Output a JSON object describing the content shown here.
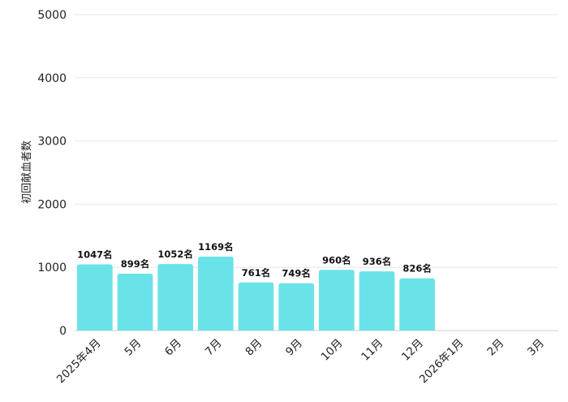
{
  "chart_data": {
    "type": "bar",
    "ylabel": "初回献血者数",
    "ylim": [
      0,
      5000
    ],
    "yticks": [
      0,
      1000,
      2000,
      3000,
      4000,
      5000
    ],
    "categories": [
      "2025年4月",
      "5月",
      "6月",
      "7月",
      "8月",
      "9月",
      "10月",
      "11月",
      "12月",
      "2026年1月",
      "2月",
      "3月"
    ],
    "values": [
      1047,
      899,
      1052,
      1169,
      761,
      749,
      960,
      936,
      826,
      null,
      null,
      null
    ],
    "data_labels": [
      "1047名",
      "899名",
      "1052名",
      "1169名",
      "761名",
      "749名",
      "960名",
      "936名",
      "826名",
      "",
      "",
      ""
    ],
    "bar_color": "#6ae3e8",
    "grid": true
  }
}
